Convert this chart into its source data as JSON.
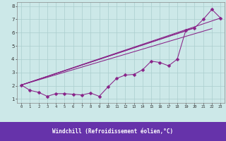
{
  "xlabel": "Windchill (Refroidissement éolien,°C)",
  "bg_color": "#cce8e8",
  "line_color": "#882288",
  "grid_color": "#aacece",
  "xlim": [
    -0.5,
    23.5
  ],
  "ylim": [
    0.7,
    8.3
  ],
  "xticks": [
    0,
    1,
    2,
    3,
    4,
    5,
    6,
    7,
    8,
    9,
    10,
    11,
    12,
    13,
    14,
    15,
    16,
    17,
    18,
    19,
    20,
    21,
    22,
    23
  ],
  "yticks": [
    1,
    2,
    3,
    4,
    5,
    6,
    7,
    8
  ],
  "xlabel_bg": "#6633aa",
  "xlabel_color": "#ffffff",
  "marker": "D",
  "markersize": 2.5,
  "x_main": [
    0,
    1,
    2,
    3,
    4,
    5,
    6,
    7,
    8,
    9,
    10,
    11,
    12,
    13,
    14,
    15,
    16,
    17,
    18,
    19,
    20,
    21,
    22,
    23
  ],
  "y_main": [
    2.05,
    1.65,
    1.5,
    1.2,
    1.4,
    1.4,
    1.35,
    1.3,
    1.45,
    1.2,
    1.9,
    2.55,
    2.8,
    2.85,
    3.2,
    3.85,
    3.75,
    3.5,
    4.0,
    6.2,
    6.35,
    7.0,
    7.75,
    7.1
  ],
  "trend_lines": [
    {
      "x": [
        0,
        19
      ],
      "y": [
        2.05,
        6.15
      ]
    },
    {
      "x": [
        0,
        20
      ],
      "y": [
        2.05,
        6.35
      ]
    },
    {
      "x": [
        0,
        22
      ],
      "y": [
        2.05,
        6.3
      ]
    },
    {
      "x": [
        0,
        23
      ],
      "y": [
        2.05,
        7.1
      ]
    }
  ]
}
